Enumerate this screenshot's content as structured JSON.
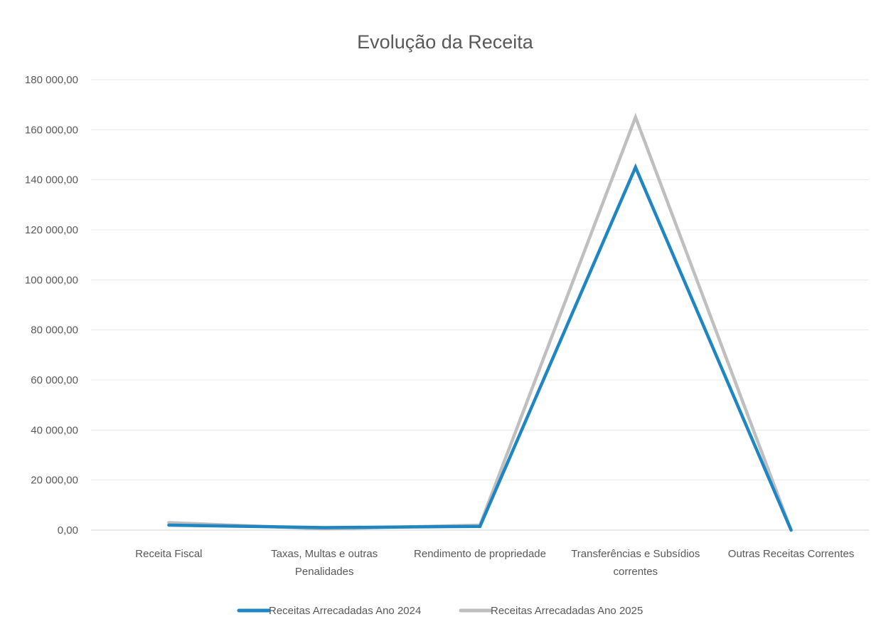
{
  "chart_data": {
    "type": "line",
    "title": "Evolução da Receita",
    "xlabel": "",
    "ylabel": "",
    "ylim": [
      0,
      180000
    ],
    "y_ticks": [
      0,
      20000,
      40000,
      60000,
      80000,
      100000,
      120000,
      140000,
      160000,
      180000
    ],
    "y_tick_labels": [
      "0,00",
      "20 000,00",
      "40 000,00",
      "60 000,00",
      "80 000,00",
      "100 000,00",
      "120 000,00",
      "140 000,00",
      "160 000,00",
      "180 000,00"
    ],
    "categories": [
      [
        "Receita Fiscal"
      ],
      [
        "Taxas, Multas e outras",
        "Penalidades"
      ],
      [
        "Rendimento de propriedade"
      ],
      [
        "Transferências e Subsídios",
        "correntes"
      ],
      [
        "Outras Receitas Correntes"
      ]
    ],
    "grid": true,
    "legend": "bottom",
    "series": [
      {
        "name": "Receitas Arrecadadas Ano 2024",
        "color": "#1f86c1",
        "values": [
          2000,
          1000,
          1500,
          145000,
          0
        ]
      },
      {
        "name": "Receitas Arrecadadas Ano 2025",
        "color": "#bfbfbf",
        "values": [
          3000,
          500,
          2000,
          165000,
          0
        ]
      }
    ]
  }
}
